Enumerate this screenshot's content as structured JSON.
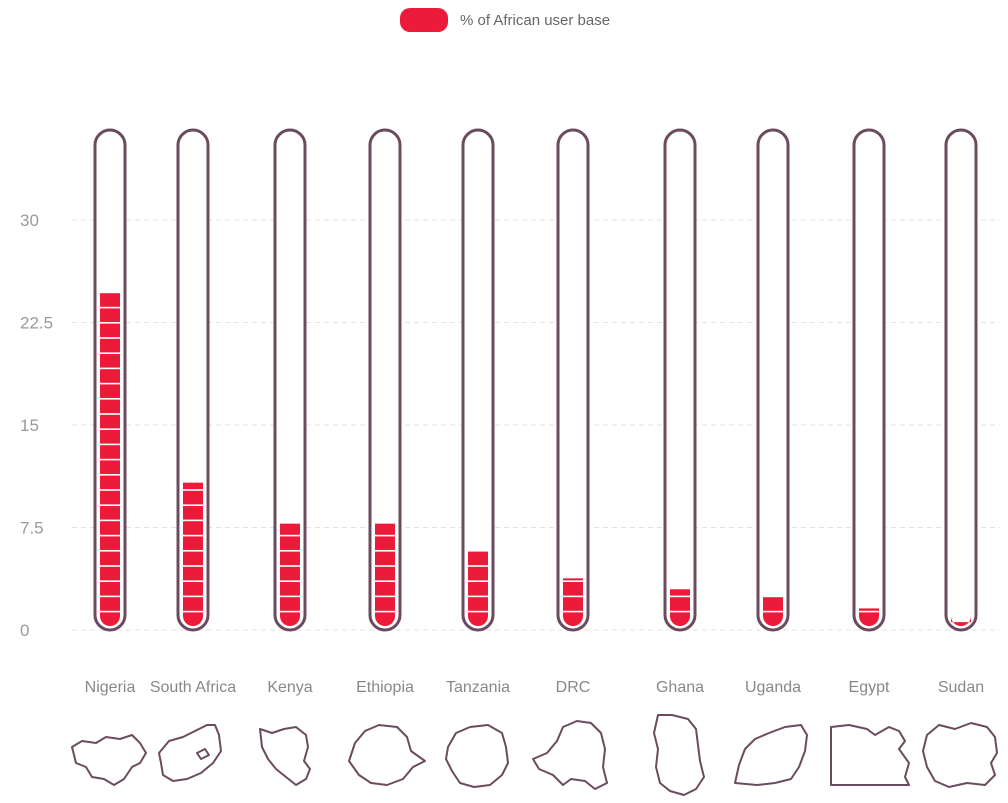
{
  "legend": {
    "label": "% of African user base",
    "color": "#ed1b3a"
  },
  "chart_data": {
    "type": "bar",
    "categories": [
      "Nigeria",
      "South Africa",
      "Kenya",
      "Ethiopia",
      "Tanzania",
      "DRC",
      "Ghana",
      "Uganda",
      "Egypt",
      "Sudan"
    ],
    "series": [
      {
        "name": "% of African user base",
        "values": [
          25,
          11,
          8,
          8,
          6,
          4,
          3.2,
          2.8,
          1.8,
          0.8
        ]
      }
    ],
    "yticks": [
      "0",
      "7.5",
      "15",
      "22.5",
      "30"
    ],
    "ylim": [
      0,
      35
    ],
    "grid": true,
    "legend_position": "top-center",
    "bar_color": "#ed1b3a",
    "tube_color": "#6b4b5e",
    "map_icons": [
      "nigeria-map-icon",
      "south-africa-map-icon",
      "kenya-map-icon",
      "ethiopia-map-icon",
      "tanzania-map-icon",
      "drc-map-icon",
      "ghana-map-icon",
      "uganda-map-icon",
      "egypt-map-icon",
      "sudan-map-icon"
    ]
  }
}
